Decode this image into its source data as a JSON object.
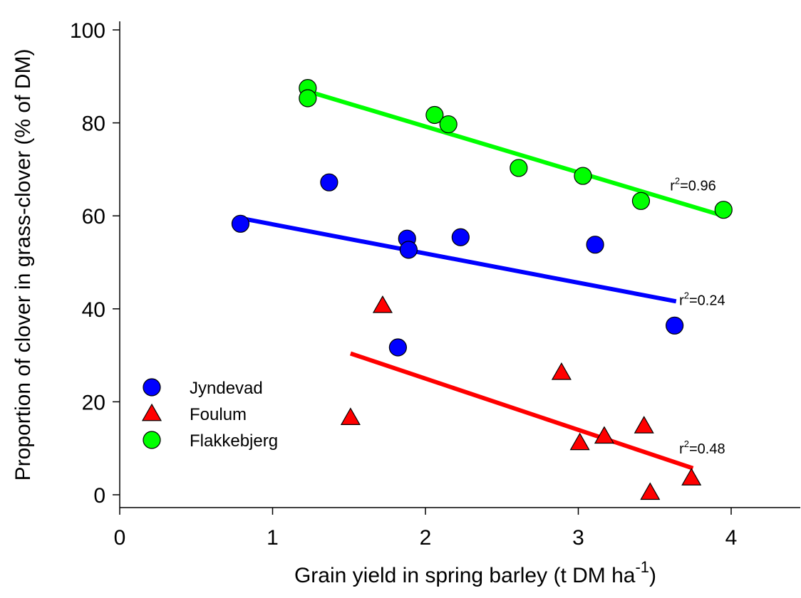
{
  "chart_data": {
    "type": "scatter",
    "xlabel": "Grain yield in spring barley (t DM ha",
    "xlabel_superscript": "-1",
    "xlabel_suffix": ")",
    "ylabel": "Proportion of clover in grass-clover (% of DM)",
    "xlim": [
      0,
      4.5
    ],
    "ylim": [
      -2,
      102
    ],
    "x_ticks": [
      0,
      1,
      2,
      3,
      4
    ],
    "y_ticks": [
      0,
      20,
      40,
      60,
      80,
      100
    ],
    "x_tick_labels": [
      "0",
      "1",
      "2",
      "3",
      "4"
    ],
    "y_tick_labels": [
      "0",
      "20",
      "40",
      "60",
      "80",
      "100"
    ],
    "grid": false,
    "legend_position": "bottom-left",
    "series": [
      {
        "name": "Jyndevad",
        "marker": "circle",
        "color": "#0000ff",
        "points": [
          {
            "x": 0.79,
            "y": 58.3
          },
          {
            "x": 1.37,
            "y": 67.2
          },
          {
            "x": 1.88,
            "y": 55.1
          },
          {
            "x": 1.89,
            "y": 52.7
          },
          {
            "x": 2.23,
            "y": 55.4
          },
          {
            "x": 3.11,
            "y": 53.8
          },
          {
            "x": 1.82,
            "y": 31.7
          },
          {
            "x": 3.63,
            "y": 36.4
          }
        ],
        "fit": {
          "x": [
            0.79,
            3.64
          ],
          "y": [
            59.5,
            41.6
          ]
        },
        "r2": "0.24"
      },
      {
        "name": "Foulum",
        "marker": "triangle",
        "color": "#ff0000",
        "points": [
          {
            "x": 1.72,
            "y": 40.7
          },
          {
            "x": 1.51,
            "y": 16.6
          },
          {
            "x": 2.89,
            "y": 26.3
          },
          {
            "x": 3.01,
            "y": 11.2
          },
          {
            "x": 3.17,
            "y": 12.6
          },
          {
            "x": 3.43,
            "y": 14.8
          },
          {
            "x": 3.47,
            "y": 0.5
          },
          {
            "x": 3.74,
            "y": 3.6
          }
        ],
        "fit": {
          "x": [
            1.51,
            3.75
          ],
          "y": [
            30.4,
            5.7
          ]
        },
        "r2": "0.48"
      },
      {
        "name": "Flakkebjerg",
        "marker": "circle",
        "color": "#00ff00",
        "points": [
          {
            "x": 1.23,
            "y": 87.5
          },
          {
            "x": 1.23,
            "y": 85.3
          },
          {
            "x": 2.06,
            "y": 81.7
          },
          {
            "x": 2.15,
            "y": 79.7
          },
          {
            "x": 2.61,
            "y": 70.3
          },
          {
            "x": 3.03,
            "y": 68.6
          },
          {
            "x": 3.41,
            "y": 63.2
          },
          {
            "x": 3.95,
            "y": 61.3
          }
        ],
        "fit": {
          "x": [
            1.23,
            3.96
          ],
          "y": [
            86.8,
            59.9
          ]
        },
        "r2": "0.96"
      }
    ],
    "legend": [
      {
        "label": "Jyndevad",
        "marker": "circle",
        "color": "#0000ff"
      },
      {
        "label": "Foulum",
        "marker": "triangle",
        "color": "#ff0000"
      },
      {
        "label": "Flakkebjerg",
        "marker": "circle",
        "color": "#00ff00"
      }
    ],
    "annotations": [
      {
        "series": "Flakkebjerg",
        "prefix": "r",
        "superscript": "2",
        "text": "=0.96",
        "x": 3.6,
        "y": 65.5
      },
      {
        "series": "Jyndevad",
        "prefix": "r",
        "superscript": "2",
        "text": "=0.24",
        "x": 3.66,
        "y": 40.8
      },
      {
        "series": "Foulum",
        "prefix": "r",
        "superscript": "2",
        "text": "=0.48",
        "x": 3.66,
        "y": 8.9
      }
    ]
  }
}
